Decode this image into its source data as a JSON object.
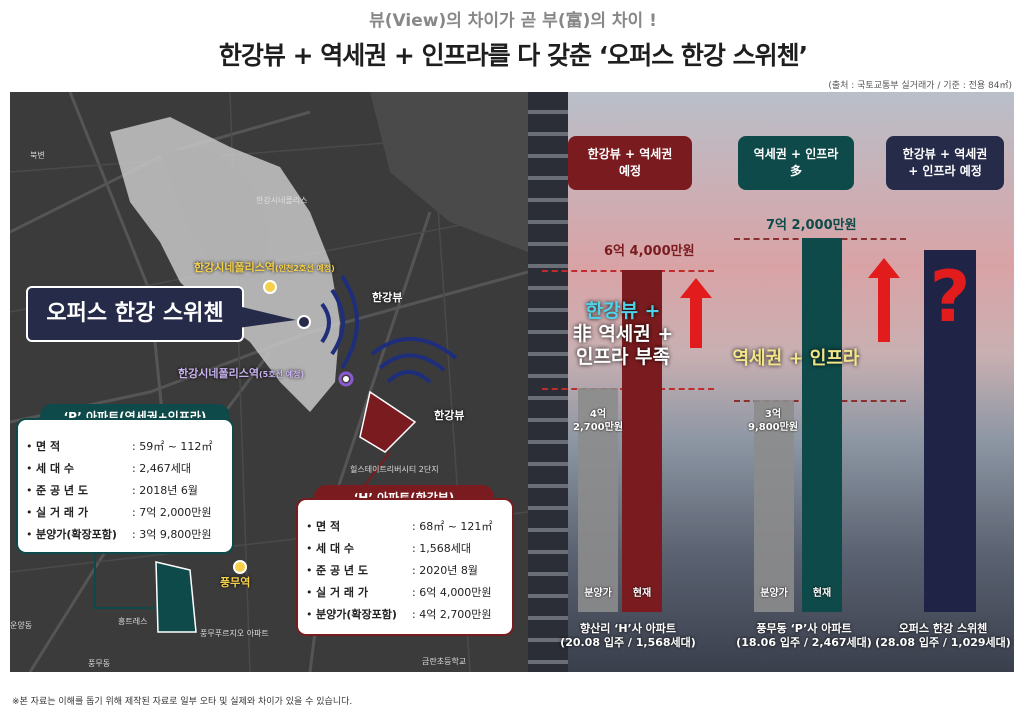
{
  "header": {
    "tagline": "뷰(View)의 차이가 곧 부(富)의 차이 !",
    "headline": "한강뷰 + 역세권 + 인프라를 다 갖춘 ‘오퍼스 한강 스위첸’",
    "source": "(출처 : 국토교통부 실거래가 / 기준 : 전용 84㎡)"
  },
  "map": {
    "station_yellow": "한강시네폴리스역",
    "station_yellow_note": "(인천2호선 예정)",
    "station_purple": "한강시네폴리스역",
    "station_purple_note": "(5호선 예정)",
    "view_label_1": "한강뷰",
    "view_label_2": "한강뷰",
    "pungmu": "풍무역",
    "callout": "오퍼스 한강 스위첸",
    "tiny": [
      "북변",
      "한강시네폴리스",
      "힐스테이트리버시티 2단지",
      "풍무푸르지오 아파트",
      "금란초등학교",
      "풍무동",
      "흥트레스",
      "운양동"
    ],
    "p_apartment": {
      "title": "‘P’ 아파트(역세권+인프라)",
      "rows": [
        {
          "label": "면 적",
          "value": ": 59㎡ ~ 112㎡"
        },
        {
          "label": "세 대 수",
          "value": ": 2,467세대"
        },
        {
          "label": "준 공 년 도",
          "value": ": 2018년 6월"
        },
        {
          "label": "실 거 래 가",
          "value": ": 7억 2,000만원"
        },
        {
          "label": "분양가(확장포함)",
          "value": ": 3억 9,800만원"
        }
      ]
    },
    "h_apartment": {
      "title": "‘H’ 아파트(한강뷰)",
      "rows": [
        {
          "label": "면 적",
          "value": ": 68㎡ ~ 121㎡"
        },
        {
          "label": "세 대 수",
          "value": ": 1,568세대"
        },
        {
          "label": "준 공 년 도",
          "value": ": 2020년 8월"
        },
        {
          "label": "실 거 래 가",
          "value": ": 6억 4,000만원"
        },
        {
          "label": "분양가(확장포함)",
          "value": ": 4억 2,700만원"
        }
      ]
    }
  },
  "comparison": {
    "groups": [
      {
        "header": "한강뷰 + 역세권\n예정",
        "header_color": "#7a1c1f"
      },
      {
        "header": "역세권 + 인프라\n多",
        "header_color": "#0e4a49"
      },
      {
        "header": "한강뷰 + 역세권\n+ 인프라 예정",
        "header_color": "#262b49"
      }
    ],
    "h_current": "6억 4,000만원",
    "p_current": "7억 2,000만원",
    "h_sale": "4억\n2,700만원",
    "p_sale": "3억\n9,800만원",
    "h_big_1": "한강뷰 +",
    "h_big_2": "非 역세권 +",
    "h_big_3": "인프라 부족",
    "p_big": "역세권 + 인프라",
    "question": "?",
    "label_sale": "분양가",
    "label_now": "현재",
    "captions": [
      "향산리 ‘H’사 아파트\n(20.08 입주 / 1,568세대)",
      "풍무동 ‘P’사 아파트\n(18.06 입주 / 2,467세대)",
      "오퍼스 한강 스위첸\n(28.08 입주 / 1,029세대)"
    ],
    "colors": {
      "h": "#7a1c1f",
      "p": "#0e4a49",
      "opus": "#1f2346",
      "grey": "#8c8c8c",
      "arrow": "#e21c1c"
    }
  },
  "footnote": "※본 자료는 이해를 돕기 위해 제작된 자료로 일부 오타 및 실제와 차이가 있을 수 있습니다."
}
